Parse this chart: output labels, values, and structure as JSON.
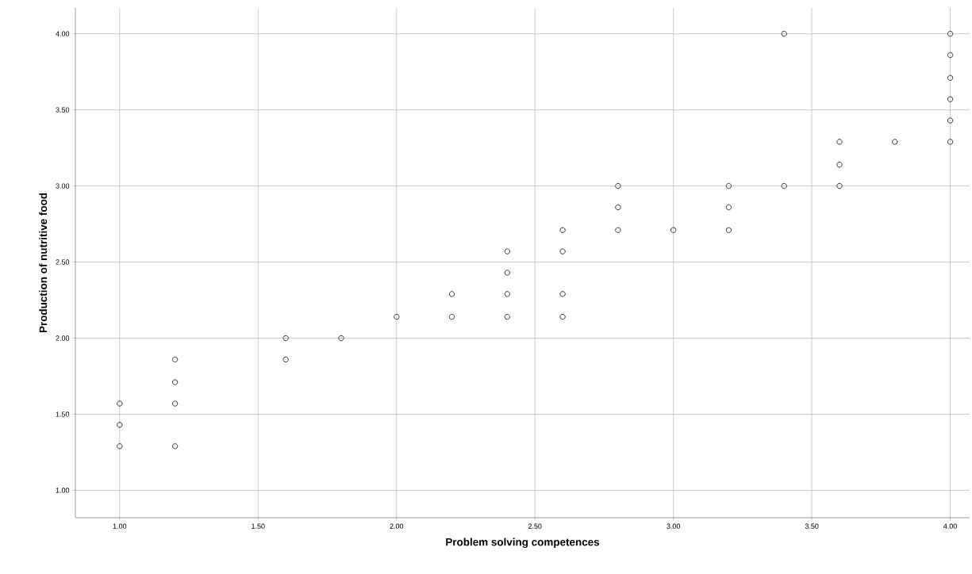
{
  "chart_data": {
    "type": "scatter",
    "xlabel": "Problem solving competences",
    "ylabel": "Production of nutritive food",
    "x": [
      1.0,
      1.0,
      1.0,
      1.2,
      1.2,
      1.2,
      1.2,
      1.6,
      1.6,
      1.8,
      2.0,
      2.2,
      2.2,
      2.4,
      2.4,
      2.4,
      2.4,
      2.6,
      2.6,
      2.6,
      2.6,
      2.8,
      2.8,
      2.8,
      3.0,
      3.2,
      3.2,
      3.2,
      3.4,
      3.4,
      3.6,
      3.6,
      3.6,
      3.8,
      4.0,
      4.0,
      4.0,
      4.0,
      4.0,
      4.0
    ],
    "values": [
      1.29,
      1.43,
      1.57,
      1.29,
      1.57,
      1.71,
      1.86,
      1.86,
      2.0,
      2.0,
      2.14,
      2.14,
      2.29,
      2.14,
      2.29,
      2.43,
      2.57,
      2.14,
      2.29,
      2.57,
      2.71,
      2.71,
      2.86,
      3.0,
      2.71,
      2.71,
      2.86,
      3.0,
      3.0,
      4.0,
      3.0,
      3.14,
      3.29,
      3.29,
      3.29,
      3.43,
      3.57,
      3.71,
      3.86,
      4.0
    ],
    "color": "#333333",
    "marker": "circle",
    "grid": true,
    "xlim": [
      0.84,
      4.07
    ],
    "ylim": [
      0.82,
      4.17
    ],
    "xticks": [
      {
        "value": 1.0,
        "label": "1.00"
      },
      {
        "value": 1.5,
        "label": "1.50"
      },
      {
        "value": 2.0,
        "label": "2.00"
      },
      {
        "value": 2.5,
        "label": "2.50"
      },
      {
        "value": 3.0,
        "label": "3.00"
      },
      {
        "value": 3.5,
        "label": "3.50"
      },
      {
        "value": 4.0,
        "label": "4.00"
      }
    ],
    "yticks": [
      {
        "value": 1.0,
        "label": "1.00"
      },
      {
        "value": 1.5,
        "label": "1.50"
      },
      {
        "value": 2.0,
        "label": "2.00"
      },
      {
        "value": 2.5,
        "label": "2.50"
      },
      {
        "value": 3.0,
        "label": "3.00"
      },
      {
        "value": 3.5,
        "label": "3.50"
      },
      {
        "value": 4.0,
        "label": "4.00"
      }
    ]
  }
}
